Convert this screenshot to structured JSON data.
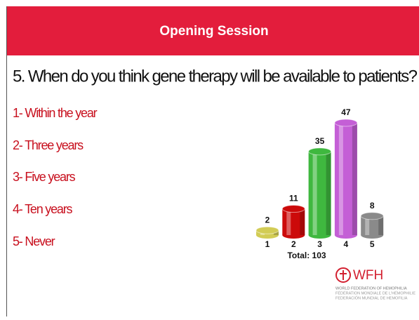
{
  "header": {
    "title": "Opening Session"
  },
  "question": "5. When do you think gene therapy will be available to patients?",
  "options": [
    "1- Within the year",
    "2- Three years",
    "3- Five years",
    "4- Ten years",
    "5- Never"
  ],
  "chart_data": {
    "type": "bar",
    "categories": [
      "1",
      "2",
      "3",
      "4",
      "5"
    ],
    "values": [
      2,
      11,
      35,
      47,
      8
    ],
    "colors": [
      "#d2cc55",
      "#cc0a0a",
      "#3fb83f",
      "#c45fd6",
      "#8a8a8a"
    ],
    "annotation": "Total: 103"
  },
  "logo": {
    "name": "WFH",
    "lines": [
      "WORLD FEDERATION OF HEMOPHILIA",
      "FÉDÉRATION MONDIALE DE L'HÉMOPHILIE",
      "FEDERACIÓN MUNDIAL DE HEMOFILIA"
    ]
  }
}
